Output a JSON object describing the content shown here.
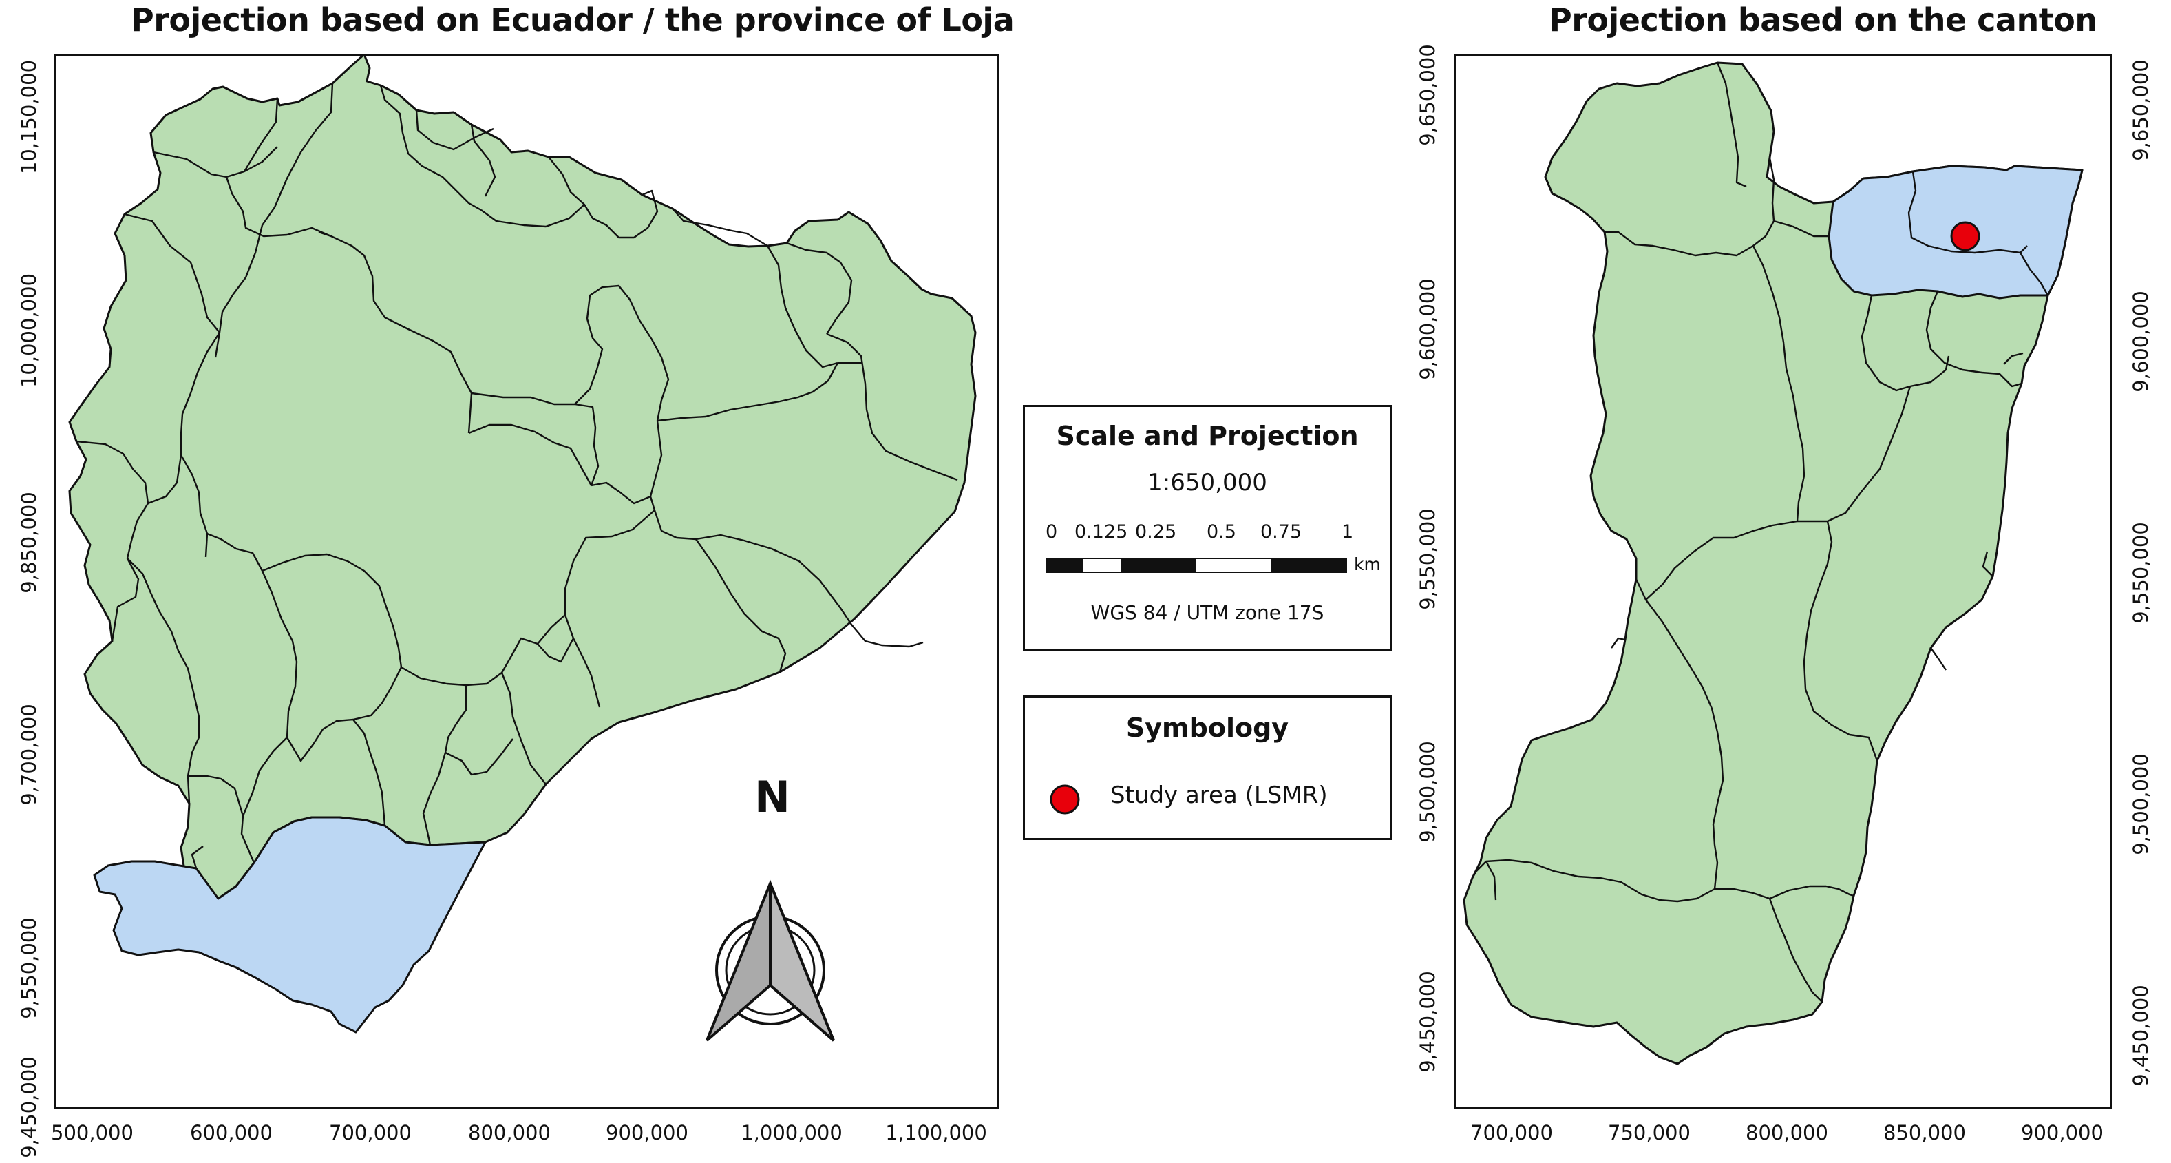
{
  "left_map": {
    "title": "Projection based on Ecuador / the province of Loja",
    "y_ticks": [
      "10,150,000",
      "10,000,000",
      "9,850,000",
      "9,700,000",
      "9,550,000",
      "9,450,000"
    ],
    "x_ticks": [
      "500,000",
      "600,000",
      "700,000",
      "800,000",
      "900,000",
      "1,000,000",
      "1,100,000"
    ],
    "colors": {
      "country": "#b9ddb2",
      "province_loja": "#bcd7f3",
      "outline": "#111111"
    }
  },
  "right_map": {
    "title": "Projection based on the canton",
    "y_ticks": [
      "9,650,000",
      "9,600,000",
      "9,550,000",
      "9,500,000",
      "9,450,000"
    ],
    "x_ticks": [
      "700,000",
      "750,000",
      "800,000",
      "850,000",
      "900,000"
    ],
    "colors": {
      "canton": "#b9ddb2",
      "parish_selected": "#bcd7f3",
      "study_area": "#e8000b"
    }
  },
  "north_arrow": {
    "label": "N"
  },
  "scale_panel": {
    "title": "Scale and Projection",
    "scale": "1:650,000",
    "bar_labels": [
      "0",
      "0.125",
      "0.25",
      "0.5",
      "0.75",
      "1"
    ],
    "unit": "km",
    "crs": "WGS 84 / UTM zone 17S"
  },
  "symbology_panel": {
    "title": "Symbology",
    "items": [
      {
        "label": "Study area (LSMR)",
        "color": "#e8000b"
      }
    ]
  }
}
